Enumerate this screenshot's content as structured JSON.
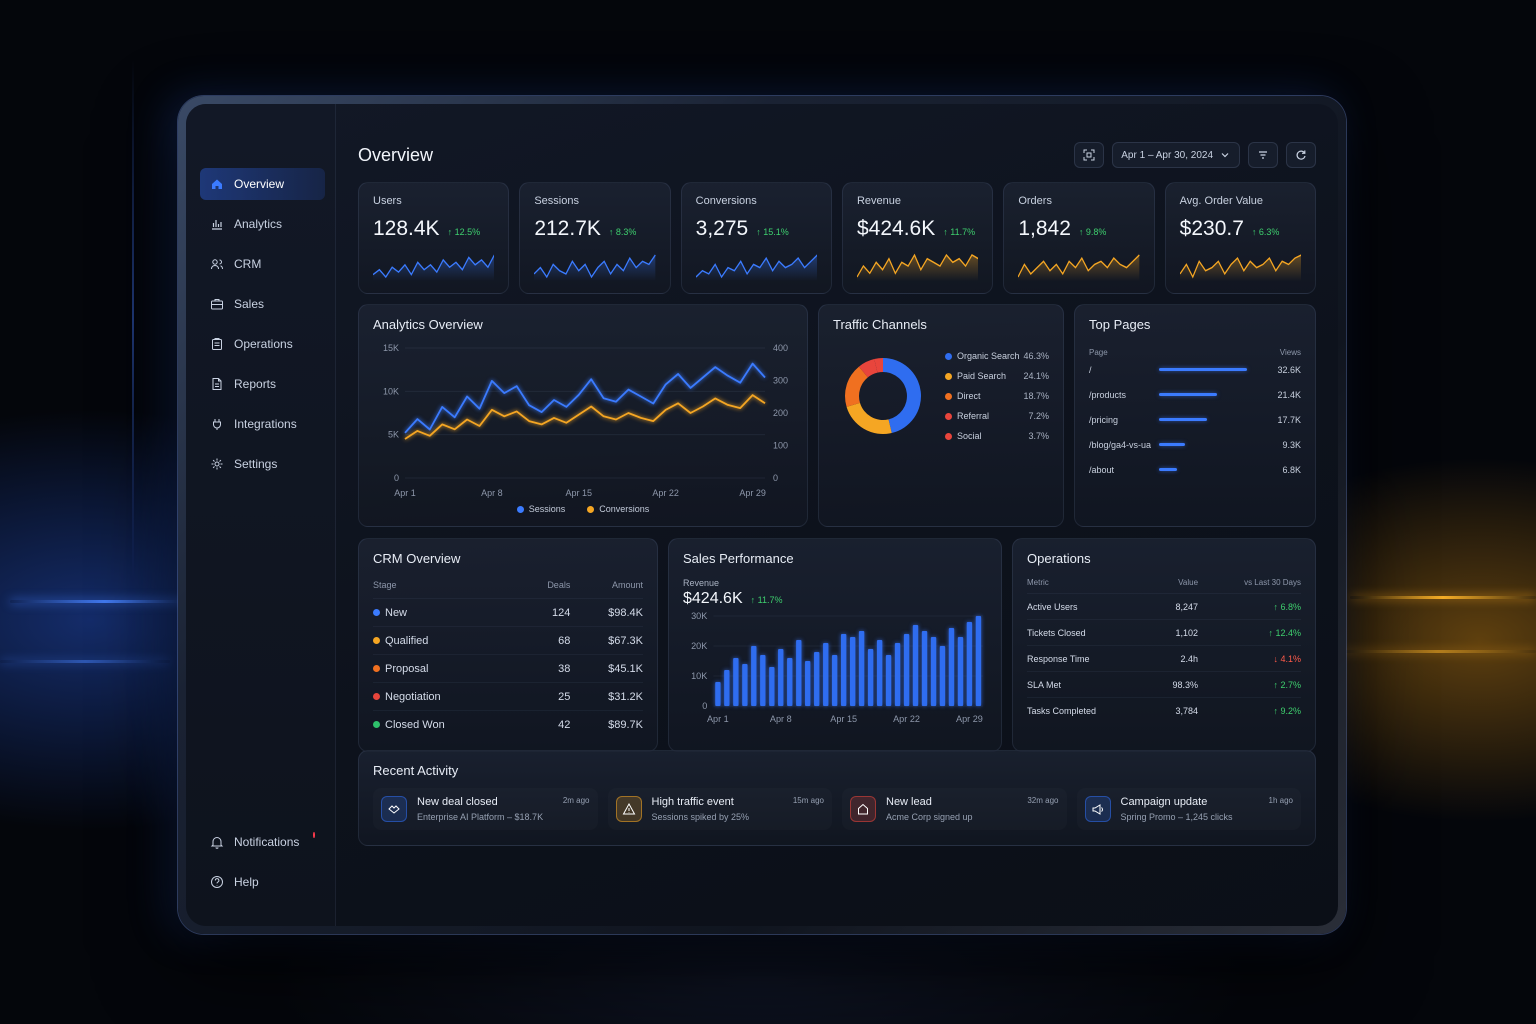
{
  "colors": {
    "accent_blue": "#3b7bff",
    "accent_amber": "#f5a623",
    "orange": "#f07020",
    "red": "#e8453c",
    "green": "#2ec06b",
    "delta_up": "#3ecf6e",
    "delta_down": "#ff5a4a"
  },
  "sidebar": {
    "items": [
      {
        "label": "Overview",
        "icon": "home-icon",
        "active": true
      },
      {
        "label": "Analytics",
        "icon": "bar-chart-icon"
      },
      {
        "label": "CRM",
        "icon": "users-icon"
      },
      {
        "label": "Sales",
        "icon": "briefcase-icon"
      },
      {
        "label": "Operations",
        "icon": "clipboard-icon"
      },
      {
        "label": "Reports",
        "icon": "file-icon"
      },
      {
        "label": "Integrations",
        "icon": "plug-icon"
      },
      {
        "label": "Settings",
        "icon": "gear-icon"
      }
    ],
    "footer": [
      {
        "label": "Notifications",
        "icon": "bell-icon",
        "badge": true
      },
      {
        "label": "Help",
        "icon": "help-icon"
      }
    ]
  },
  "header": {
    "title": "Overview",
    "date_range": "Apr 1 – Apr 30, 2024"
  },
  "kpis": [
    {
      "label": "Users",
      "value": "128.4K",
      "delta": "↑ 12.5%",
      "color": "#3b7bff",
      "trend": [
        12,
        14,
        11,
        15,
        13,
        16,
        12,
        17,
        14,
        16,
        13,
        18,
        15,
        17,
        14,
        19,
        16,
        18,
        15,
        20
      ]
    },
    {
      "label": "Sessions",
      "value": "212.7K",
      "delta": "↑ 8.3%",
      "color": "#3b7bff",
      "trend": [
        13,
        15,
        12,
        16,
        14,
        13,
        17,
        14,
        16,
        12,
        15,
        17,
        13,
        16,
        14,
        18,
        15,
        17,
        16,
        19
      ]
    },
    {
      "label": "Conversions",
      "value": "3,275",
      "delta": "↑ 15.1%",
      "color": "#3b7bff",
      "trend": [
        12,
        14,
        13,
        16,
        12,
        15,
        14,
        17,
        13,
        16,
        15,
        18,
        14,
        17,
        15,
        16,
        18,
        15,
        17,
        19
      ]
    },
    {
      "label": "Revenue",
      "value": "$424.6K",
      "delta": "↑ 11.7%",
      "color": "#f5a623",
      "trend": [
        12,
        15,
        13,
        16,
        14,
        17,
        13,
        16,
        15,
        18,
        14,
        17,
        16,
        15,
        18,
        16,
        17,
        15,
        18,
        17
      ]
    },
    {
      "label": "Orders",
      "value": "1,842",
      "delta": "↑ 9.8%",
      "color": "#f5a623",
      "trend": [
        12,
        16,
        13,
        15,
        17,
        14,
        16,
        13,
        17,
        15,
        18,
        14,
        16,
        17,
        15,
        18,
        16,
        15,
        17,
        19
      ]
    },
    {
      "label": "Avg. Order Value",
      "value": "$230.7",
      "delta": "↑ 6.3%",
      "color": "#f5a623",
      "trend": [
        13,
        16,
        12,
        17,
        14,
        15,
        17,
        13,
        16,
        18,
        14,
        17,
        15,
        16,
        18,
        14,
        17,
        16,
        18,
        19
      ]
    }
  ],
  "analytics": {
    "title": "Analytics Overview",
    "y_left_ticks": [
      "15K",
      "10K",
      "5K",
      "0"
    ],
    "y_right_ticks": [
      "400",
      "300",
      "200",
      "100",
      "0"
    ],
    "x_ticks": [
      "Apr 1",
      "Apr 8",
      "Apr 15",
      "Apr 22",
      "Apr 29"
    ],
    "legend": [
      "Sessions",
      "Conversions"
    ]
  },
  "chart_data": [
    {
      "type": "line",
      "title": "Analytics Overview",
      "x": [
        "Apr 1",
        "Apr 2",
        "Apr 3",
        "Apr 4",
        "Apr 5",
        "Apr 6",
        "Apr 7",
        "Apr 8",
        "Apr 9",
        "Apr 10",
        "Apr 11",
        "Apr 12",
        "Apr 13",
        "Apr 14",
        "Apr 15",
        "Apr 16",
        "Apr 17",
        "Apr 18",
        "Apr 19",
        "Apr 20",
        "Apr 21",
        "Apr 22",
        "Apr 23",
        "Apr 24",
        "Apr 25",
        "Apr 26",
        "Apr 27",
        "Apr 28",
        "Apr 29",
        "Apr 30"
      ],
      "series": [
        {
          "name": "Sessions",
          "axis": "left",
          "values": [
            5200,
            6800,
            5600,
            8200,
            7000,
            9400,
            8000,
            11200,
            9800,
            10600,
            8400,
            7600,
            9000,
            8200,
            9600,
            11400,
            9200,
            8800,
            10200,
            9400,
            8600,
            10800,
            12000,
            10400,
            11600,
            12800,
            11800,
            11000,
            13200,
            11600
          ]
        },
        {
          "name": "Conversions",
          "axis": "right",
          "values": [
            120,
            145,
            130,
            165,
            150,
            180,
            160,
            210,
            190,
            205,
            175,
            165,
            185,
            170,
            195,
            220,
            190,
            180,
            200,
            185,
            175,
            210,
            230,
            200,
            220,
            245,
            225,
            215,
            255,
            230
          ]
        }
      ],
      "ylim_left": [
        0,
        15000
      ],
      "ylim_right": [
        0,
        400
      ]
    },
    {
      "type": "pie",
      "title": "Traffic Channels",
      "categories": [
        "Organic Search",
        "Paid Search",
        "Direct",
        "Referral",
        "Social"
      ],
      "values": [
        46.3,
        24.1,
        18.7,
        7.2,
        3.7
      ]
    },
    {
      "type": "bar",
      "title": "Sales Performance",
      "categories": [
        "Apr 1",
        "Apr 2",
        "Apr 3",
        "Apr 4",
        "Apr 5",
        "Apr 6",
        "Apr 7",
        "Apr 8",
        "Apr 9",
        "Apr 10",
        "Apr 11",
        "Apr 12",
        "Apr 13",
        "Apr 14",
        "Apr 15",
        "Apr 16",
        "Apr 17",
        "Apr 18",
        "Apr 19",
        "Apr 20",
        "Apr 21",
        "Apr 22",
        "Apr 23",
        "Apr 24",
        "Apr 25",
        "Apr 26",
        "Apr 27",
        "Apr 28",
        "Apr 29",
        "Apr 30"
      ],
      "values": [
        8000,
        12000,
        16000,
        14000,
        20000,
        17000,
        13000,
        19000,
        16000,
        22000,
        15000,
        18000,
        21000,
        17000,
        24000,
        23000,
        25000,
        19000,
        22000,
        17000,
        21000,
        24000,
        27000,
        25000,
        23000,
        20000,
        26000,
        23000,
        28000,
        30000
      ],
      "ylim": [
        0,
        30000
      ],
      "y_ticks": [
        "30K",
        "20K",
        "10K",
        "0"
      ],
      "x_ticks": [
        "Apr 1",
        "Apr 8",
        "Apr 15",
        "Apr 22",
        "Apr 29"
      ]
    }
  ],
  "traffic": {
    "title": "Traffic Channels",
    "channels": [
      {
        "name": "Organic Search",
        "pct": "46.3%",
        "color": "#2f6df0"
      },
      {
        "name": "Paid Search",
        "pct": "24.1%",
        "color": "#f5a623"
      },
      {
        "name": "Direct",
        "pct": "18.7%",
        "color": "#f07020"
      },
      {
        "name": "Referral",
        "pct": "7.2%",
        "color": "#e8453c"
      },
      {
        "name": "Social",
        "pct": "3.7%",
        "color": "#e8453c"
      }
    ]
  },
  "top_pages": {
    "title": "Top Pages",
    "col_page": "Page",
    "col_views": "Views",
    "rows": [
      {
        "page": "/",
        "views": "32.6K",
        "share": 1.0
      },
      {
        "page": "/products",
        "views": "21.4K",
        "share": 0.66
      },
      {
        "page": "/pricing",
        "views": "17.7K",
        "share": 0.54
      },
      {
        "page": "/blog/ga4-vs-ua",
        "views": "9.3K",
        "share": 0.29
      },
      {
        "page": "/about",
        "views": "6.8K",
        "share": 0.21
      }
    ]
  },
  "crm": {
    "title": "CRM Overview",
    "col_stage": "Stage",
    "col_deals": "Deals",
    "col_amount": "Amount",
    "rows": [
      {
        "stage": "New",
        "deals": "124",
        "amount": "$98.4K",
        "color": "#3b7bff"
      },
      {
        "stage": "Qualified",
        "deals": "68",
        "amount": "$67.3K",
        "color": "#f5a623"
      },
      {
        "stage": "Proposal",
        "deals": "38",
        "amount": "$45.1K",
        "color": "#f07020"
      },
      {
        "stage": "Negotiation",
        "deals": "25",
        "amount": "$31.2K",
        "color": "#e8453c"
      },
      {
        "stage": "Closed Won",
        "deals": "42",
        "amount": "$89.7K",
        "color": "#2ec06b"
      }
    ]
  },
  "sales": {
    "title": "Sales Performance",
    "label": "Revenue",
    "value": "$424.6K",
    "delta": "↑ 11.7%"
  },
  "operations": {
    "title": "Operations",
    "col_metric": "Metric",
    "col_value": "Value",
    "col_change": "vs Last 30 Days",
    "rows": [
      {
        "metric": "Active Users",
        "value": "8,247",
        "change": "↑ 6.8%",
        "down": false
      },
      {
        "metric": "Tickets Closed",
        "value": "1,102",
        "change": "↑ 12.4%",
        "down": false
      },
      {
        "metric": "Response Time",
        "value": "2.4h",
        "change": "↓ 4.1%",
        "down": true
      },
      {
        "metric": "SLA Met",
        "value": "98.3%",
        "change": "↑ 2.7%",
        "down": false
      },
      {
        "metric": "Tasks Completed",
        "value": "3,784",
        "change": "↑ 9.2%",
        "down": false
      }
    ]
  },
  "activity": {
    "title": "Recent Activity",
    "items": [
      {
        "title": "New deal closed",
        "sub": "Enterprise AI Platform – $18.7K",
        "time": "2m ago",
        "icon": "handshake-icon",
        "color": "#2f6df0"
      },
      {
        "title": "High traffic event",
        "sub": "Sessions spiked by 25%",
        "time": "15m ago",
        "icon": "alert-icon",
        "color": "#f5a623"
      },
      {
        "title": "New lead",
        "sub": "Acme Corp signed up",
        "time": "32m ago",
        "icon": "lead-icon",
        "color": "#e8453c"
      },
      {
        "title": "Campaign update",
        "sub": "Spring Promo – 1,245 clicks",
        "time": "1h ago",
        "icon": "megaphone-icon",
        "color": "#2f6df0"
      }
    ]
  }
}
